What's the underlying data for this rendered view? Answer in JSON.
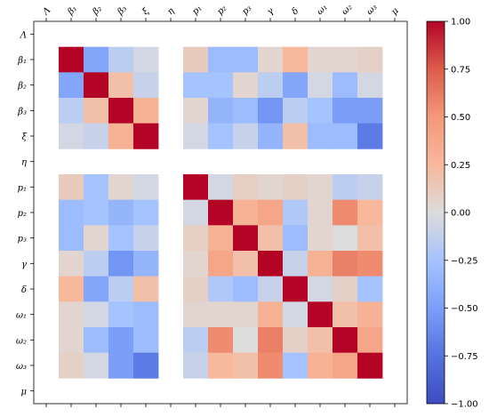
{
  "chart_data": {
    "type": "heatmap",
    "title": "",
    "labels": [
      "Λ",
      "β₁",
      "β₂",
      "β₃",
      "ξ",
      "η",
      "p₁",
      "p₂",
      "p₃",
      "γ",
      "δ",
      "ω₁",
      "ω₂",
      "ω₃",
      "μ"
    ],
    "missing": [
      0,
      5,
      14
    ],
    "matrix": [
      [
        null,
        null,
        null,
        null,
        null,
        null,
        null,
        null,
        null,
        null,
        null,
        null,
        null,
        null,
        null
      ],
      [
        null,
        1.0,
        -0.45,
        -0.15,
        -0.05,
        null,
        0.12,
        -0.3,
        -0.3,
        0.05,
        0.25,
        0.05,
        0.05,
        0.08,
        null
      ],
      [
        null,
        -0.45,
        1.0,
        0.2,
        -0.1,
        null,
        -0.25,
        -0.25,
        0.05,
        -0.15,
        -0.45,
        -0.05,
        -0.3,
        -0.05,
        null
      ],
      [
        null,
        -0.15,
        0.2,
        1.0,
        0.3,
        null,
        0.05,
        -0.35,
        -0.3,
        -0.55,
        -0.15,
        -0.25,
        -0.5,
        -0.5,
        null
      ],
      [
        null,
        -0.05,
        -0.1,
        0.3,
        1.0,
        null,
        -0.05,
        -0.25,
        -0.1,
        -0.35,
        0.2,
        -0.3,
        -0.3,
        -0.7,
        null
      ],
      [
        null,
        null,
        null,
        null,
        null,
        null,
        null,
        null,
        null,
        null,
        null,
        null,
        null,
        null,
        null
      ],
      [
        null,
        0.12,
        -0.25,
        0.05,
        -0.05,
        null,
        1.0,
        -0.05,
        0.1,
        0.05,
        0.08,
        0.05,
        -0.15,
        -0.1,
        null
      ],
      [
        null,
        -0.3,
        -0.25,
        -0.35,
        -0.25,
        null,
        -0.05,
        1.0,
        0.3,
        0.4,
        -0.2,
        0.05,
        0.55,
        0.25,
        null
      ],
      [
        null,
        -0.3,
        0.05,
        -0.25,
        -0.1,
        null,
        0.1,
        0.3,
        1.0,
        0.2,
        -0.3,
        0.05,
        0.0,
        0.2,
        null
      ],
      [
        null,
        0.05,
        -0.15,
        -0.55,
        -0.35,
        null,
        0.05,
        0.4,
        0.2,
        1.0,
        -0.1,
        0.3,
        0.6,
        0.55,
        null
      ],
      [
        null,
        0.25,
        -0.45,
        -0.15,
        0.2,
        null,
        0.08,
        -0.2,
        -0.3,
        -0.1,
        1.0,
        -0.05,
        0.08,
        -0.25,
        null
      ],
      [
        null,
        0.05,
        -0.05,
        -0.25,
        -0.3,
        null,
        0.05,
        0.05,
        0.05,
        0.3,
        -0.05,
        1.0,
        0.2,
        0.3,
        null
      ],
      [
        null,
        0.05,
        -0.3,
        -0.5,
        -0.3,
        null,
        -0.15,
        0.55,
        0.0,
        0.6,
        0.08,
        0.2,
        1.0,
        0.4,
        null
      ],
      [
        null,
        0.08,
        -0.05,
        -0.5,
        -0.7,
        null,
        -0.1,
        0.25,
        0.2,
        0.55,
        -0.25,
        0.3,
        0.4,
        1.0,
        null
      ],
      [
        null,
        null,
        null,
        null,
        null,
        null,
        null,
        null,
        null,
        null,
        null,
        null,
        null,
        null,
        null
      ]
    ],
    "colorbar": {
      "vmin": -1.0,
      "vmax": 1.0,
      "ticks": [
        "1.00",
        "0.75",
        "0.50",
        "0.25",
        "0.00",
        "−0.25",
        "−0.50",
        "−0.75",
        "−1.00"
      ],
      "tick_values": [
        1.0,
        0.75,
        0.5,
        0.25,
        0.0,
        -0.25,
        -0.5,
        -0.75,
        -1.0
      ],
      "colormap": "coolwarm"
    },
    "grid": false
  }
}
